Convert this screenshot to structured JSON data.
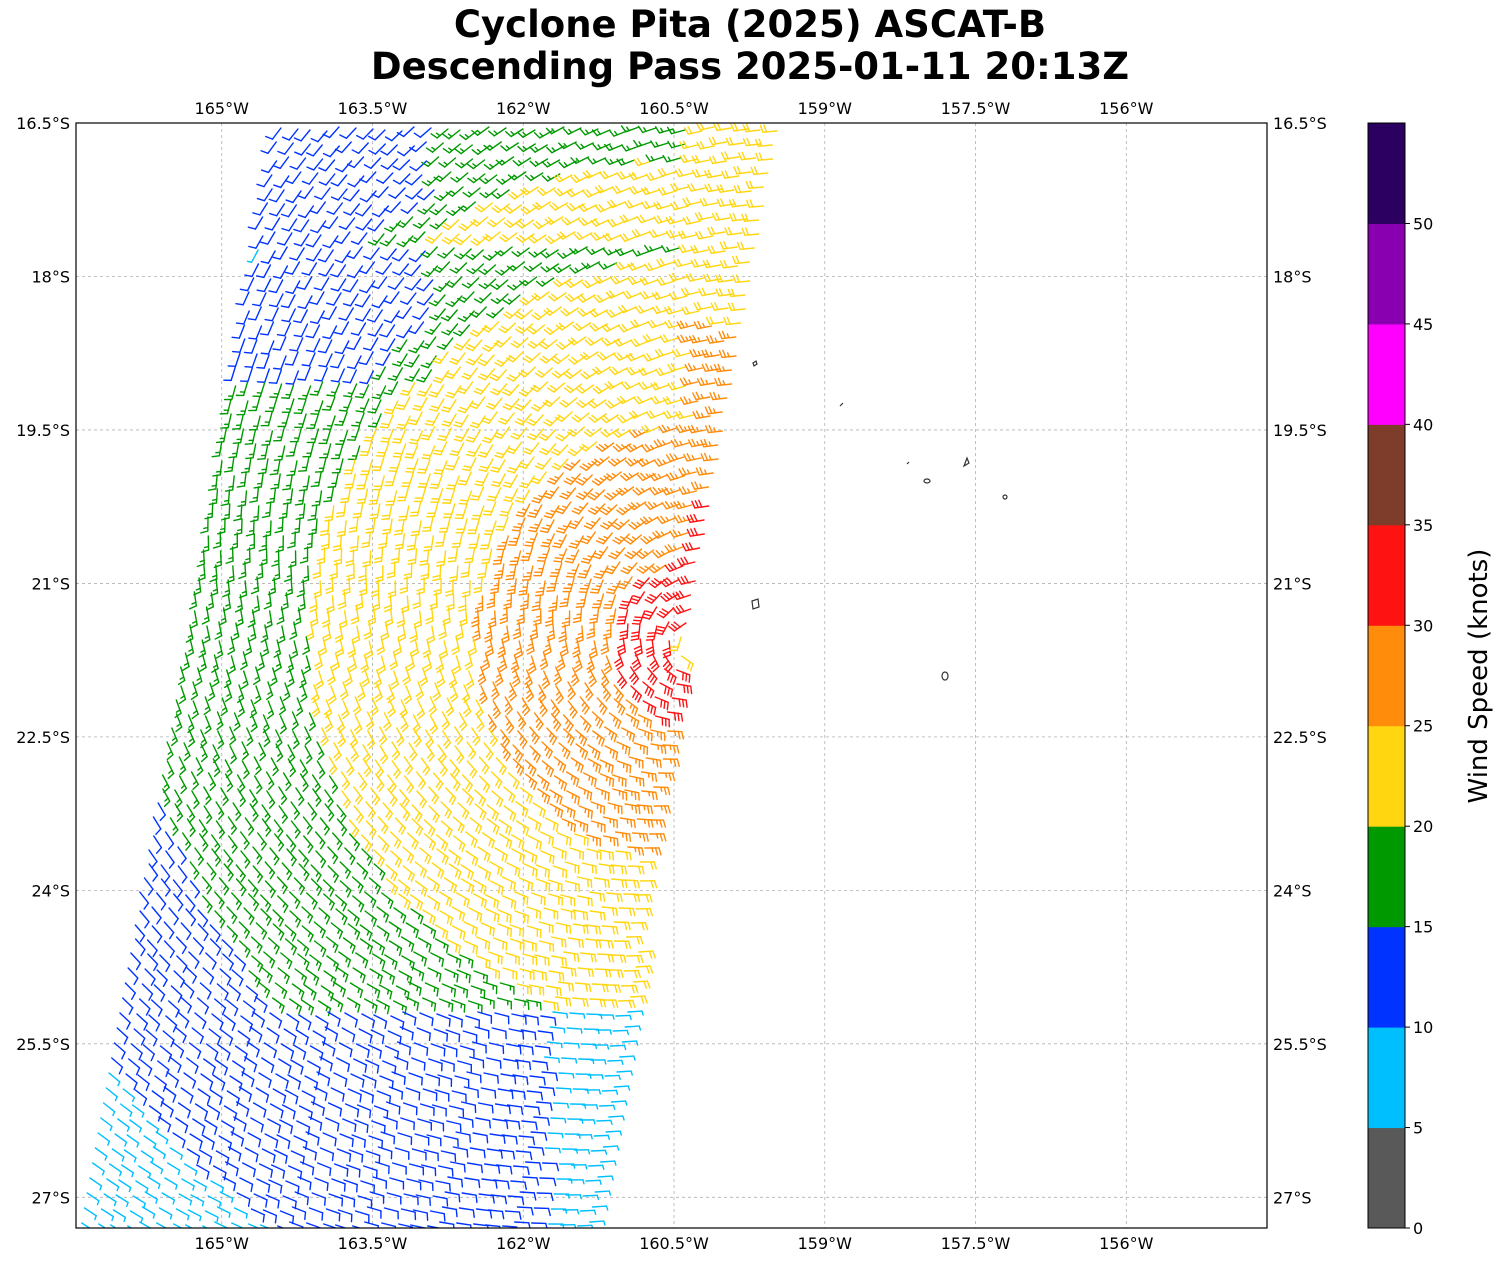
{
  "title": {
    "line1": "Cyclone Pita (2025) ASCAT-B",
    "line2": "Descending Pass 2025-01-11 20:13Z"
  },
  "map": {
    "lon_range": [
      -166.45,
      -154.6
    ],
    "lat_range": [
      -27.3,
      -16.5
    ],
    "lon_ticks": [
      {
        "value": -165,
        "label": "165°W"
      },
      {
        "value": -163.5,
        "label": "163.5°W"
      },
      {
        "value": -162,
        "label": "162°W"
      },
      {
        "value": -160.5,
        "label": "160.5°W"
      },
      {
        "value": -159,
        "label": "159°W"
      },
      {
        "value": -157.5,
        "label": "157.5°W"
      },
      {
        "value": -156,
        "label": "156°W"
      }
    ],
    "lat_ticks": [
      {
        "value": -16.5,
        "label": "16.5°S"
      },
      {
        "value": -18,
        "label": "18°S"
      },
      {
        "value": -19.5,
        "label": "19.5°S"
      },
      {
        "value": -21,
        "label": "21°S"
      },
      {
        "value": -22.5,
        "label": "22.5°S"
      },
      {
        "value": -24,
        "label": "24°S"
      },
      {
        "value": -25.5,
        "label": "25.5°S"
      },
      {
        "value": -27,
        "label": "27°S"
      }
    ],
    "gridlines": true,
    "cyclone_center": {
      "lon": -160.3,
      "lat": -21.6
    },
    "swath": {
      "west_top": -164.4,
      "east_top": -159.4,
      "west_bottom": -166.4,
      "east_bottom": -161.3
    }
  },
  "colorbar": {
    "label": "Wind Speed (knots)",
    "unit": "knots",
    "bins": [
      {
        "min": 0,
        "max": 5,
        "color": "#595959"
      },
      {
        "min": 5,
        "max": 10,
        "color": "#00bfff"
      },
      {
        "min": 10,
        "max": 15,
        "color": "#0033ff"
      },
      {
        "min": 15,
        "max": 20,
        "color": "#009900"
      },
      {
        "min": 20,
        "max": 25,
        "color": "#ffd60f"
      },
      {
        "min": 25,
        "max": 30,
        "color": "#ff8c0a"
      },
      {
        "min": 30,
        "max": 35,
        "color": "#ff1212"
      },
      {
        "min": 35,
        "max": 40,
        "color": "#7e3c2a"
      },
      {
        "min": 40,
        "max": 45,
        "color": "#ff00ff"
      },
      {
        "min": 45,
        "max": 50,
        "color": "#8800b0"
      },
      {
        "min": 50,
        "max": 55,
        "color": "#2c0060"
      }
    ],
    "tick_labels": [
      "0",
      "5",
      "10",
      "15",
      "20",
      "25",
      "30",
      "35",
      "40",
      "45",
      "50"
    ]
  }
}
